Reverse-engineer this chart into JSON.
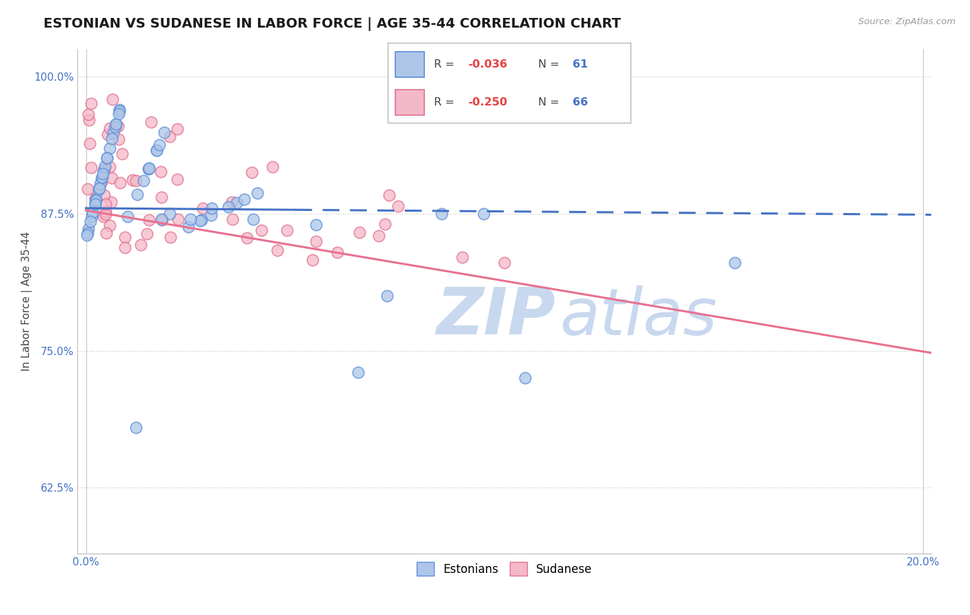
{
  "title": "ESTONIAN VS SUDANESE IN LABOR FORCE | AGE 35-44 CORRELATION CHART",
  "source_text": "Source: ZipAtlas.com",
  "xlabel": "",
  "ylabel": "In Labor Force | Age 35-44",
  "xlim": [
    -0.002,
    0.202
  ],
  "ylim": [
    0.565,
    1.025
  ],
  "yticks": [
    0.625,
    0.75,
    0.875,
    1.0
  ],
  "ytick_labels": [
    "62.5%",
    "75.0%",
    "87.5%",
    "100.0%"
  ],
  "xtick_left_label": "0.0%",
  "xtick_right_label": "20.0%",
  "R_estonian": -0.036,
  "N_estonian": 61,
  "R_sudanese": -0.25,
  "N_sudanese": 66,
  "color_estonian_fill": "#adc6e8",
  "color_estonian_edge": "#5b8dd9",
  "color_sudanese_fill": "#f5b8c8",
  "color_sudanese_edge": "#e07090",
  "color_line_estonian": "#4472c4",
  "color_line_sudanese": "#e87090",
  "watermark_zip_color": "#c8d8ee",
  "watermark_atlas_color": "#c8d8ee",
  "background_color": "#ffffff",
  "legend_R_color": "#e84040",
  "legend_N_color": "#4472c4",
  "est_trend_y0": 0.88,
  "est_trend_y1": 0.874,
  "sud_trend_y0": 0.878,
  "sud_trend_y1": 0.748
}
